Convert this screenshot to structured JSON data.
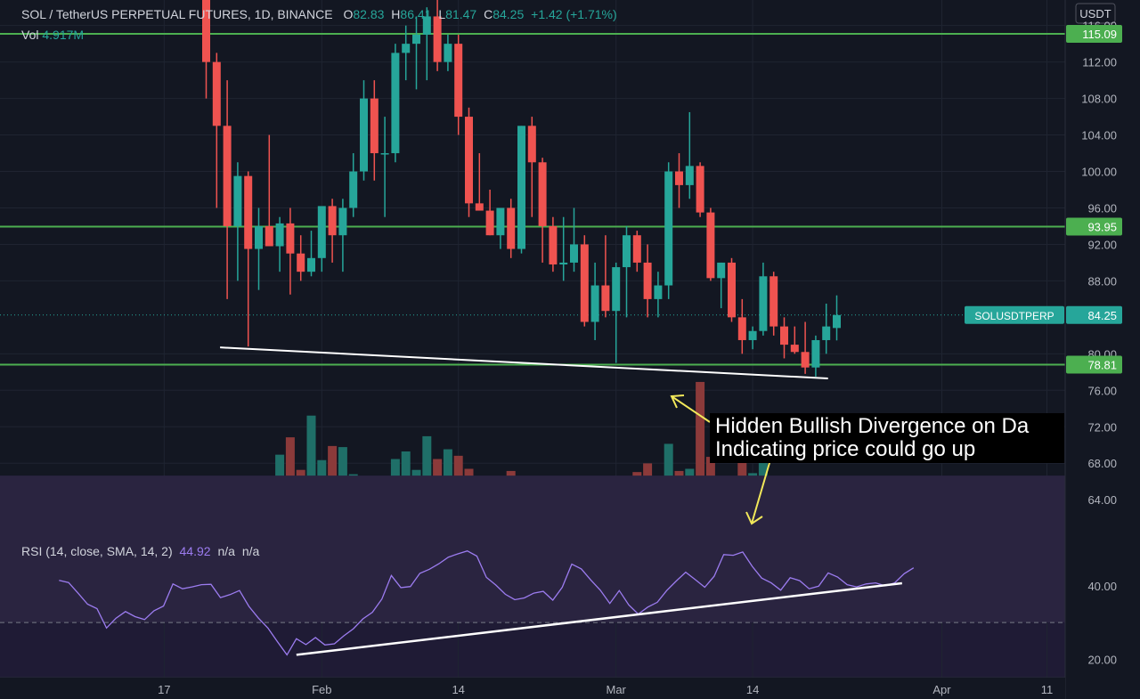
{
  "header": {
    "symbol": "SOL / TetherUS PERPETUAL FUTURES, 1D, BINANCE",
    "o_label": "O",
    "o_value": "82.83",
    "h_label": "H",
    "h_value": "86.41",
    "l_label": "L",
    "l_value": "81.47",
    "c_label": "C",
    "c_value": "84.25",
    "change": "+1.42 (+1.71%)"
  },
  "volume": {
    "label": "Vol",
    "value": "4.917M"
  },
  "rsi": {
    "label": "RSI (14, close, SMA, 14, 2)",
    "value": "44.92",
    "na1": "n/a",
    "na2": "n/a"
  },
  "currency": "USDT",
  "symbol_tag": "SOLUSDTPERP",
  "annotation": {
    "line1": "Hidden Bullish Divergence on Da",
    "line2": "Indicating price could go up"
  },
  "colors": {
    "background": "#131722",
    "up": "#26a69a",
    "down": "#ef5350",
    "level": "#4caf50",
    "rsi": "#9c7cf0",
    "trend": "#ffffff",
    "arrow": "#f2e85a"
  },
  "chart_data": {
    "type": "candlestick",
    "price_axis": {
      "ticks": [
        "116.00",
        "112.00",
        "108.00",
        "104.00",
        "100.00",
        "96.00",
        "92.00",
        "88.00",
        "80.00",
        "76.00",
        "72.00",
        "68.00",
        "64.00"
      ],
      "range": [
        60.6,
        118.8
      ]
    },
    "x_axis": {
      "ticks": [
        "17",
        "Feb",
        "14",
        "Mar",
        "14",
        "Apr",
        "11"
      ],
      "first_date": "2022-01-08"
    },
    "levels": [
      {
        "price": 115.09,
        "label": "115.09"
      },
      {
        "price": 93.95,
        "label": "93.95"
      },
      {
        "price": 78.81,
        "label": "78.81"
      }
    ],
    "last_price": {
      "price": 84.25,
      "label": "84.25"
    },
    "candles": [
      {
        "date": "2022-01-21",
        "o": 127.0,
        "h": 131.0,
        "l": 108.0,
        "c": 112.0
      },
      {
        "date": "2022-01-22",
        "o": 112.0,
        "h": 113.0,
        "l": 96.0,
        "c": 105.0
      },
      {
        "date": "2022-01-23",
        "o": 105.0,
        "h": 110.0,
        "l": 86.0,
        "c": 94.0
      },
      {
        "date": "2022-01-24",
        "o": 94.0,
        "h": 101.0,
        "l": 88.0,
        "c": 99.5
      },
      {
        "date": "2022-01-25",
        "o": 99.5,
        "h": 100.0,
        "l": 80.8,
        "c": 91.5
      },
      {
        "date": "2022-01-26",
        "o": 91.5,
        "h": 96.0,
        "l": 87.0,
        "c": 94.0
      },
      {
        "date": "2022-01-27",
        "o": 94.0,
        "h": 104.0,
        "l": 92.0,
        "c": 91.8
      },
      {
        "date": "2022-01-28",
        "o": 91.8,
        "h": 95.0,
        "l": 89.0,
        "c": 94.3
      },
      {
        "date": "2022-01-29",
        "o": 94.3,
        "h": 96.0,
        "l": 86.5,
        "c": 91.0
      },
      {
        "date": "2022-01-30",
        "o": 91.0,
        "h": 93.0,
        "l": 88.0,
        "c": 89.0
      },
      {
        "date": "2022-01-31",
        "o": 89.0,
        "h": 93.5,
        "l": 88.5,
        "c": 90.5
      },
      {
        "date": "2022-02-01",
        "o": 90.5,
        "h": 96.0,
        "l": 89.0,
        "c": 96.2
      },
      {
        "date": "2022-02-02",
        "o": 96.2,
        "h": 97.0,
        "l": 90.0,
        "c": 93.0
      },
      {
        "date": "2022-02-03",
        "o": 93.0,
        "h": 97.0,
        "l": 89.0,
        "c": 96.0
      },
      {
        "date": "2022-02-04",
        "o": 96.0,
        "h": 102.0,
        "l": 95.0,
        "c": 100.0
      },
      {
        "date": "2022-02-05",
        "o": 100.0,
        "h": 110.0,
        "l": 99.0,
        "c": 108.0
      },
      {
        "date": "2022-02-06",
        "o": 108.0,
        "h": 110.0,
        "l": 99.0,
        "c": 102.0
      },
      {
        "date": "2022-02-07",
        "o": 102.0,
        "h": 106.0,
        "l": 95.0,
        "c": 102.0
      },
      {
        "date": "2022-02-08",
        "o": 102.0,
        "h": 114.0,
        "l": 101.0,
        "c": 113.0
      },
      {
        "date": "2022-02-09",
        "o": 113.0,
        "h": 116.0,
        "l": 110.0,
        "c": 114.0
      },
      {
        "date": "2022-02-10",
        "o": 114.0,
        "h": 117.0,
        "l": 109.0,
        "c": 115.0
      },
      {
        "date": "2022-02-11",
        "o": 115.0,
        "h": 118.0,
        "l": 110.0,
        "c": 117.0
      },
      {
        "date": "2022-02-12",
        "o": 117.0,
        "h": 119.0,
        "l": 111.0,
        "c": 112.0
      },
      {
        "date": "2022-02-13",
        "o": 112.0,
        "h": 115.0,
        "l": 111.0,
        "c": 114.0
      },
      {
        "date": "2022-02-14",
        "o": 114.0,
        "h": 115.0,
        "l": 104.0,
        "c": 106.0
      },
      {
        "date": "2022-02-15",
        "o": 106.0,
        "h": 107.0,
        "l": 95.0,
        "c": 96.5
      },
      {
        "date": "2022-02-16",
        "o": 96.5,
        "h": 102.0,
        "l": 96.0,
        "c": 95.7
      },
      {
        "date": "2022-02-17",
        "o": 95.7,
        "h": 98.0,
        "l": 93.0,
        "c": 93.0
      },
      {
        "date": "2022-02-18",
        "o": 93.0,
        "h": 96.0,
        "l": 91.5,
        "c": 96.0
      },
      {
        "date": "2022-02-19",
        "o": 96.0,
        "h": 97.0,
        "l": 90.5,
        "c": 91.5
      },
      {
        "date": "2022-02-20",
        "o": 91.5,
        "h": 105.0,
        "l": 91.0,
        "c": 105.0
      },
      {
        "date": "2022-02-21",
        "o": 105.0,
        "h": 106.0,
        "l": 95.0,
        "c": 101.0
      },
      {
        "date": "2022-02-22",
        "o": 101.0,
        "h": 101.5,
        "l": 90.0,
        "c": 94.0
      },
      {
        "date": "2022-02-23",
        "o": 94.0,
        "h": 95.0,
        "l": 89.0,
        "c": 89.8
      },
      {
        "date": "2022-02-24",
        "o": 89.8,
        "h": 95.0,
        "l": 88.0,
        "c": 90.0
      },
      {
        "date": "2022-02-25",
        "o": 90.0,
        "h": 96.0,
        "l": 89.0,
        "c": 92.0
      },
      {
        "date": "2022-02-26",
        "o": 92.0,
        "h": 93.0,
        "l": 83.0,
        "c": 83.5
      },
      {
        "date": "2022-02-27",
        "o": 83.5,
        "h": 90.0,
        "l": 81.5,
        "c": 87.5
      },
      {
        "date": "2022-02-28",
        "o": 87.5,
        "h": 93.0,
        "l": 84.0,
        "c": 84.7
      },
      {
        "date": "2022-03-01",
        "o": 84.7,
        "h": 90.0,
        "l": 79.0,
        "c": 89.5
      },
      {
        "date": "2022-03-02",
        "o": 89.5,
        "h": 94.0,
        "l": 84.0,
        "c": 93.0
      },
      {
        "date": "2022-03-03",
        "o": 93.0,
        "h": 93.5,
        "l": 89.0,
        "c": 90.0
      },
      {
        "date": "2022-03-04",
        "o": 90.0,
        "h": 92.0,
        "l": 84.0,
        "c": 86.0
      },
      {
        "date": "2022-03-05",
        "o": 86.0,
        "h": 89.0,
        "l": 84.0,
        "c": 87.5
      },
      {
        "date": "2022-03-06",
        "o": 87.5,
        "h": 101.0,
        "l": 86.0,
        "c": 100.0
      },
      {
        "date": "2022-03-07",
        "o": 100.0,
        "h": 102.0,
        "l": 96.0,
        "c": 98.5
      },
      {
        "date": "2022-03-08",
        "o": 98.5,
        "h": 106.5,
        "l": 97.0,
        "c": 100.6
      },
      {
        "date": "2022-03-09",
        "o": 100.6,
        "h": 101.0,
        "l": 95.0,
        "c": 95.5
      },
      {
        "date": "2022-03-10",
        "o": 95.5,
        "h": 96.0,
        "l": 88.0,
        "c": 88.3
      },
      {
        "date": "2022-03-11",
        "o": 88.3,
        "h": 90.0,
        "l": 85.0,
        "c": 90.0
      },
      {
        "date": "2022-03-12",
        "o": 90.0,
        "h": 90.5,
        "l": 83.5,
        "c": 84.0
      },
      {
        "date": "2022-03-13",
        "o": 84.0,
        "h": 86.0,
        "l": 80.0,
        "c": 81.5
      },
      {
        "date": "2022-03-14",
        "o": 81.5,
        "h": 83.0,
        "l": 80.5,
        "c": 82.5
      },
      {
        "date": "2022-03-15",
        "o": 82.5,
        "h": 90.0,
        "l": 82.0,
        "c": 88.5
      },
      {
        "date": "2022-03-16",
        "o": 88.5,
        "h": 89.0,
        "l": 82.0,
        "c": 83.0
      },
      {
        "date": "2022-03-17",
        "o": 83.0,
        "h": 84.0,
        "l": 79.5,
        "c": 81.0
      },
      {
        "date": "2022-03-18",
        "o": 81.0,
        "h": 83.0,
        "l": 80.0,
        "c": 80.2
      },
      {
        "date": "2022-03-19",
        "o": 80.2,
        "h": 83.5,
        "l": 77.8,
        "c": 78.5
      },
      {
        "date": "2022-03-20",
        "o": 78.5,
        "h": 82.0,
        "l": 77.5,
        "c": 81.5
      },
      {
        "date": "2022-03-21",
        "o": 81.5,
        "h": 85.5,
        "l": 80.0,
        "c": 83.0
      },
      {
        "date": "2022-03-22",
        "o": 82.83,
        "h": 86.41,
        "l": 81.47,
        "c": 84.25
      }
    ],
    "volume": {
      "range": [
        0,
        12.3
      ],
      "values": [
        1.5,
        2.2,
        2.8,
        2.3,
        3.3,
        3.5,
        2.9,
        3.5,
        2.5,
        2.3,
        2.9,
        2.9,
        3.3,
        2.5,
        2.3,
        2.1,
        2.3,
        2.1,
        2.6,
        7.0,
        8.6,
        5.6,
        10.6,
        6.5,
        7.8,
        7.7,
        5.2,
        3.9,
        2.3,
        3.0,
        6.6,
        7.3,
        5.6,
        8.7,
        6.6,
        7.5,
        6.9,
        5.7,
        4.0,
        4.8,
        4.3,
        5.5,
        4.9,
        4.8,
        3.4,
        4.1,
        3.9,
        4.9,
        4.1,
        4.2,
        4.0,
        3.3,
        2.9,
        5.4,
        6.2,
        4.5,
        8.0,
        5.5,
        5.7,
        13.7,
        6.8,
        4.3,
        4.5,
        7.4,
        5.3,
        6.8,
        4.4,
        4.3,
        4.5,
        2.7,
        3.0,
        4.5,
        4.9,
        4.3,
        4.2,
        2.8,
        3.2,
        3.4,
        3.5,
        2.1
      ],
      "first_date": "2022-01-09"
    },
    "rsi_axis": {
      "ticks": [
        "40.00",
        "20.00"
      ],
      "range": [
        15,
        55
      ],
      "band": [
        30,
        70
      ]
    },
    "rsi_values": [
      41.5,
      40.9,
      38.0,
      35.0,
      33.8,
      28.5,
      31.2,
      33.0,
      31.6,
      30.8,
      33.2,
      34.5,
      40.5,
      39.2,
      39.7,
      40.3,
      40.4,
      36.8,
      37.6,
      38.7,
      34.4,
      31.2,
      28.5,
      24.8,
      21.2,
      25.6,
      24.0,
      25.9,
      23.9,
      24.2,
      26.4,
      28.3,
      31.0,
      32.8,
      36.4,
      42.8,
      39.5,
      39.8,
      43.4,
      44.5,
      46.0,
      47.8,
      48.7,
      49.5,
      48.1,
      42.3,
      40.2,
      37.7,
      36.2,
      36.7,
      38.0,
      38.5,
      36.1,
      39.6,
      45.9,
      44.6,
      41.6,
      38.8,
      35.2,
      38.7,
      34.8,
      32.3,
      34.2,
      35.5,
      38.7,
      41.3,
      43.7,
      41.7,
      39.6,
      42.6,
      48.5,
      48.3,
      49.2,
      45.3,
      42.1,
      40.8,
      38.8,
      42.2,
      41.4,
      39.2,
      39.9,
      43.5,
      42.4,
      40.3,
      39.7,
      40.5,
      40.8,
      40.0,
      40.8,
      43.3,
      44.9
    ],
    "rsi_first_date": "2022-01-07"
  }
}
